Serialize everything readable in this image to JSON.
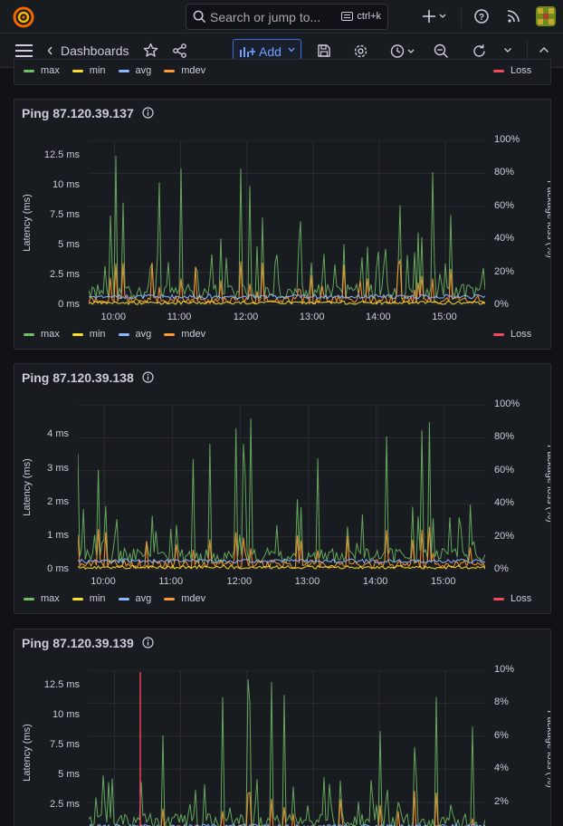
{
  "topbar": {
    "search_placeholder": "Search or jump to...",
    "shortcut": "ctrl+k"
  },
  "navbar": {
    "breadcrumb": "Dashboards",
    "add_label": "Add"
  },
  "legend": {
    "max": "max",
    "min": "min",
    "avg": "avg",
    "mdev": "mdev",
    "loss": "Loss"
  },
  "colors": {
    "max": "#73bf69",
    "min": "#fade2a",
    "avg": "#8ab8ff",
    "mdev": "#ff9830",
    "loss": "#f2495c"
  },
  "panels": [
    {
      "title": "Ping 87.120.39.137",
      "ylabel": "Latency (ms)",
      "ylabel_right": "Package loss (%)",
      "yticks": [
        "12.5 ms",
        "10 ms",
        "7.5 ms",
        "5 ms",
        "2.5 ms",
        "0 ms"
      ],
      "yticks_right": [
        "100%",
        "80%",
        "60%",
        "40%",
        "20%",
        "0%"
      ],
      "xticks": [
        "10:00",
        "11:00",
        "12:00",
        "13:00",
        "14:00",
        "15:00"
      ]
    },
    {
      "title": "Ping 87.120.39.138",
      "ylabel": "Latency (ms)",
      "ylabel_right": "Package loss (%)",
      "yticks": [
        "4 ms",
        "3 ms",
        "2 ms",
        "1 ms",
        "0 ms"
      ],
      "yticks_right": [
        "100%",
        "80%",
        "60%",
        "40%",
        "20%",
        "0%"
      ],
      "xticks": [
        "10:00",
        "11:00",
        "12:00",
        "13:00",
        "14:00",
        "15:00"
      ]
    },
    {
      "title": "Ping 87.120.39.139",
      "ylabel": "Latency (ms)",
      "ylabel_right": "Package loss (%)",
      "yticks": [
        "12.5 ms",
        "10 ms",
        "7.5 ms",
        "5 ms",
        "2.5 ms"
      ],
      "yticks_right": [
        "10%",
        "8%",
        "6%",
        "4%",
        "2%"
      ],
      "xticks": []
    }
  ]
}
